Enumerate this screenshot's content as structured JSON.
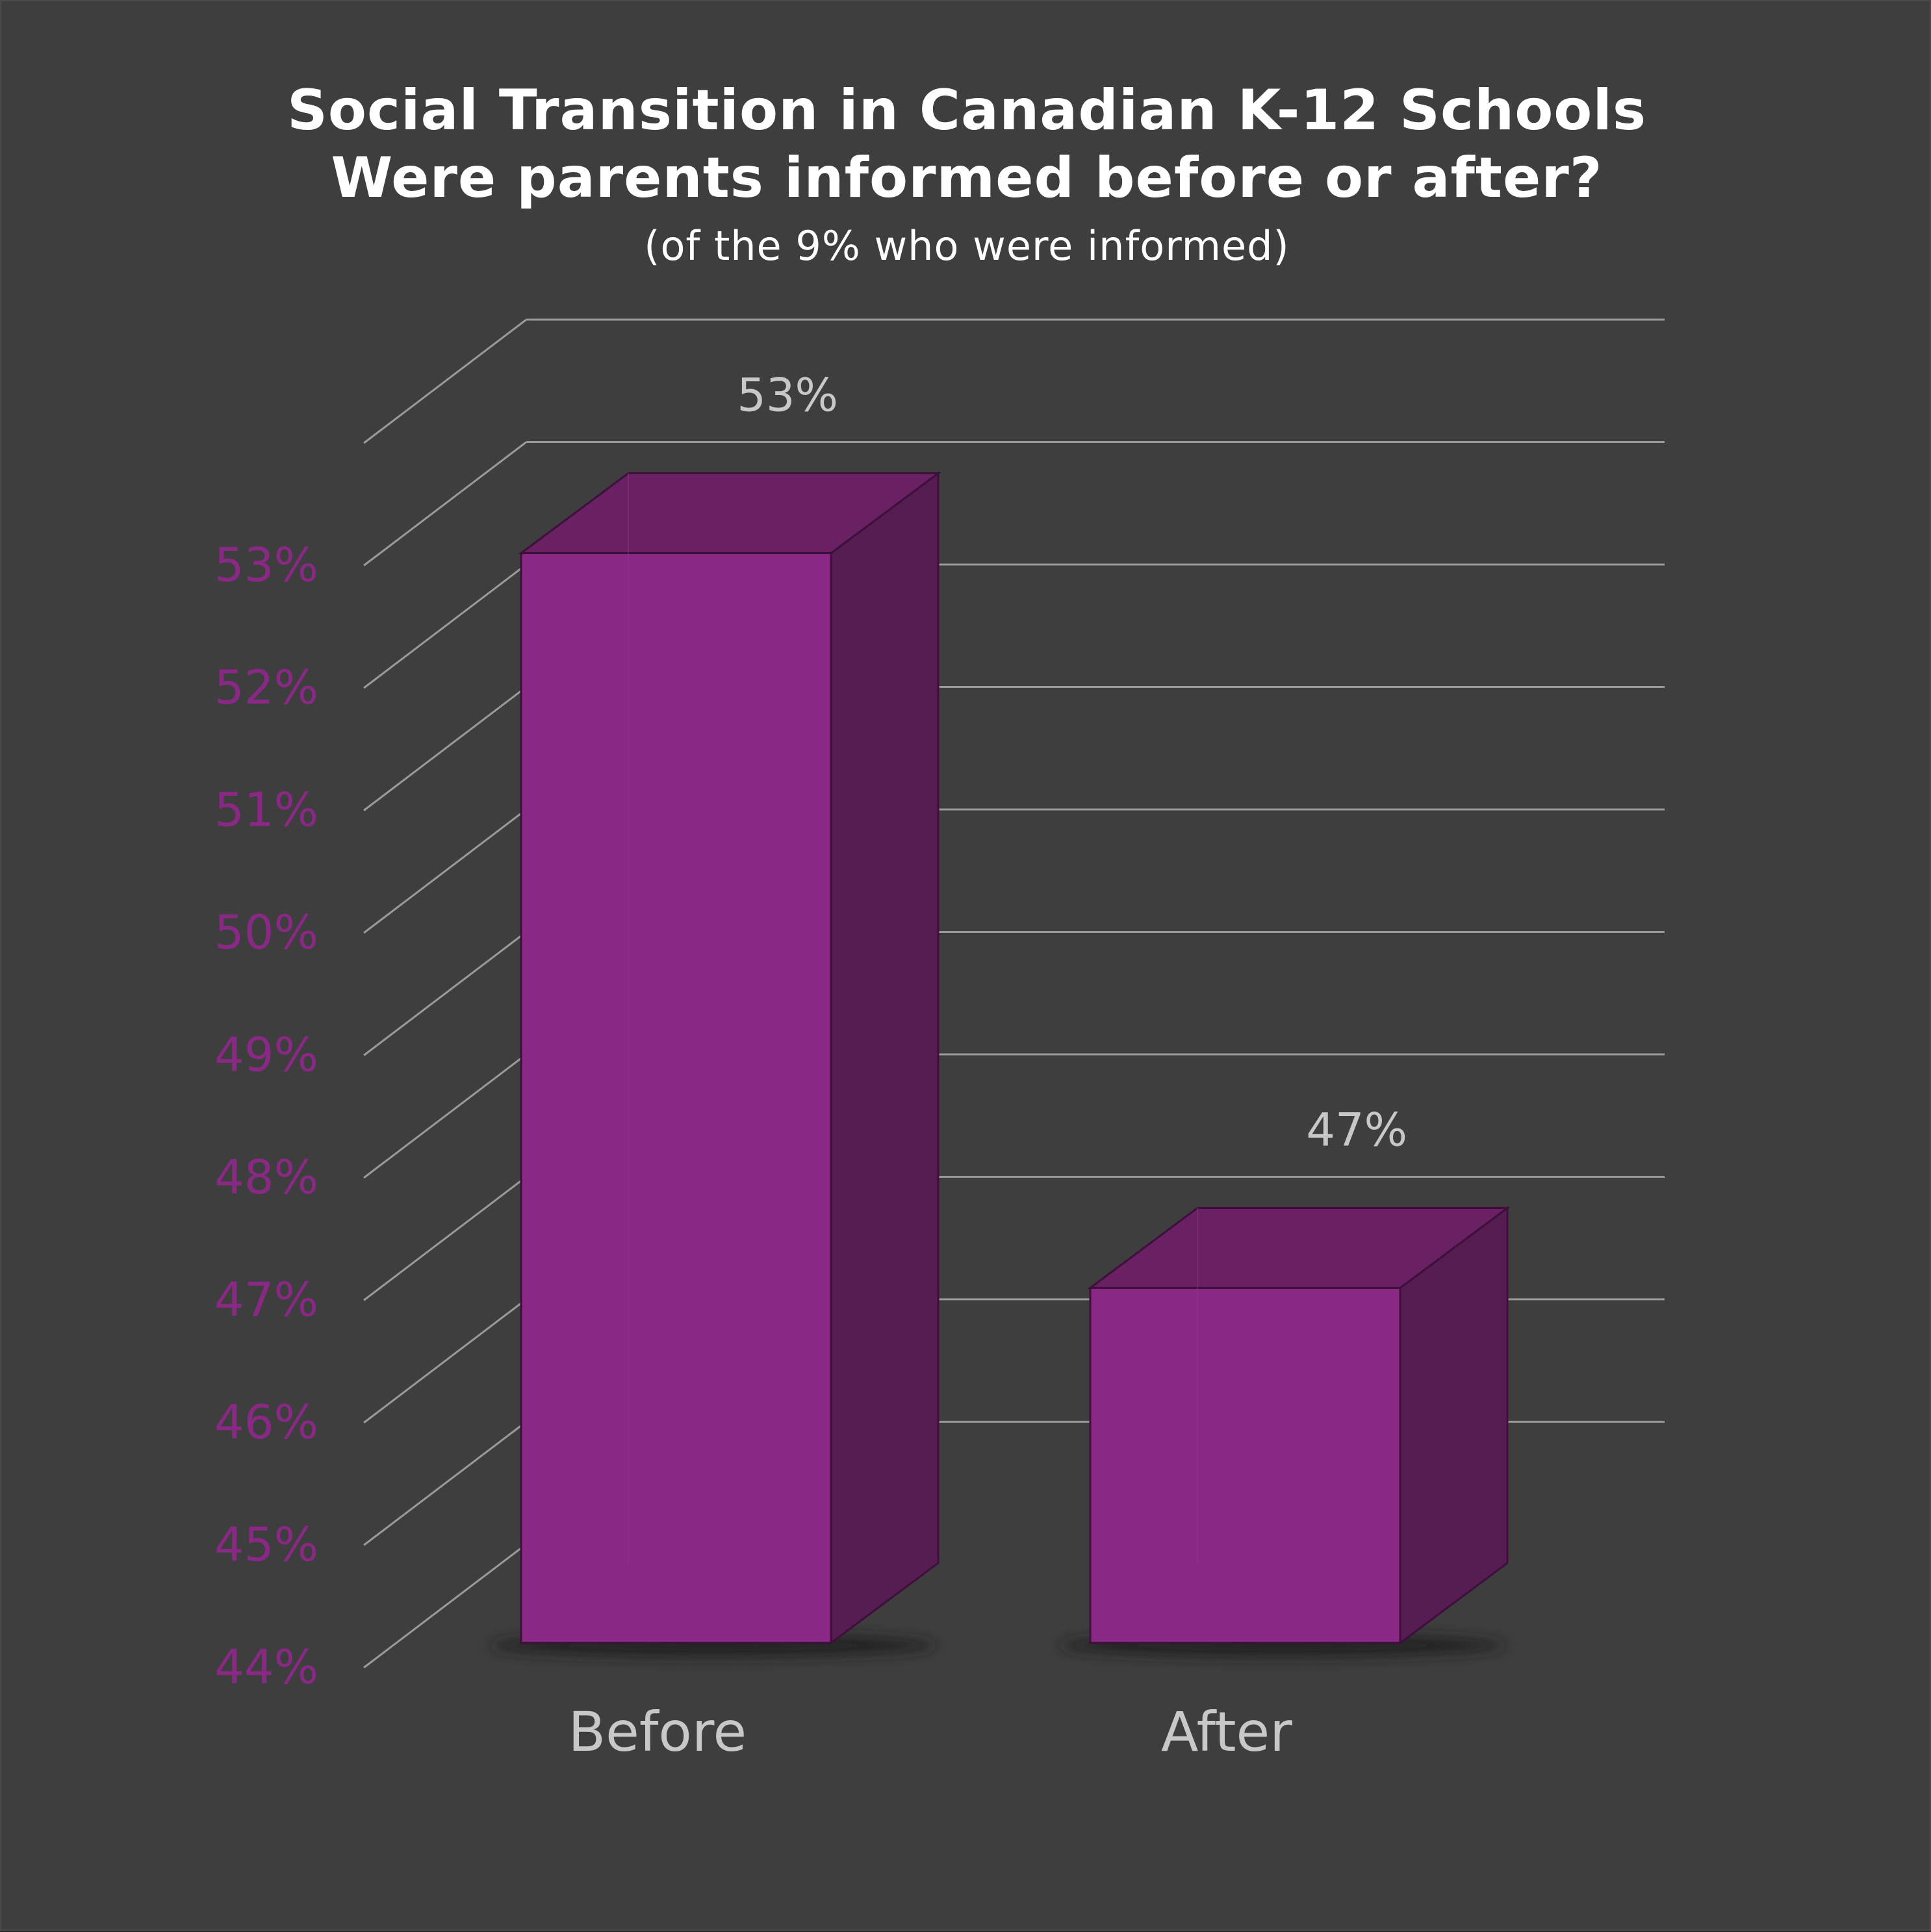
{
  "title_line_1": "Social Transition in Canadian K-12 Schools",
  "title_line_2": "Were parents informed before or after?",
  "subtitle": "(of the 9% who were informed)",
  "colors": {
    "background": "#3e3e3e",
    "grid": "#9a9a9a",
    "bar_front": "#8a2885",
    "bar_top": "#6a2164",
    "bar_side": "#561d52",
    "bar_edge": "#3d0f3a",
    "tick_label": "#8a2885",
    "value_label": "#c8c8c8",
    "category_label": "#c8c8c8"
  },
  "chart_data": {
    "type": "bar",
    "style": "3d",
    "title": "Social Transition in Canadian K-12 Schools\nWere parents informed before or after?",
    "subtitle": "(of the 9% who were informed)",
    "categories": [
      "Before",
      "After"
    ],
    "values": [
      53,
      47
    ],
    "data_labels": [
      "53%",
      "47%"
    ],
    "ylim": [
      44,
      53
    ],
    "yticks": [
      44,
      45,
      46,
      47,
      48,
      49,
      50,
      51,
      52,
      53
    ],
    "ytick_labels": [
      "44%",
      "45%",
      "46%",
      "47%",
      "48%",
      "49%",
      "50%",
      "51%",
      "52%",
      "53%"
    ],
    "grid": true,
    "xlabel": "",
    "ylabel": ""
  }
}
